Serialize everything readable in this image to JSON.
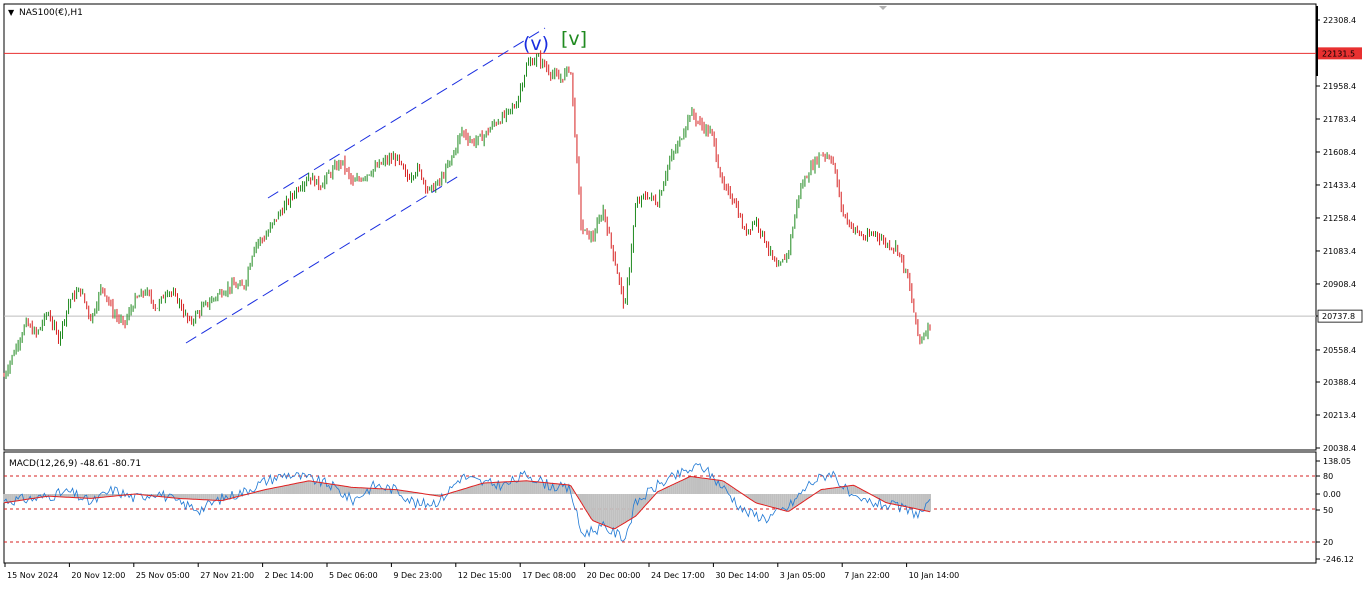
{
  "chart_data": {
    "type": "candlestick",
    "symbol_label": "NAS100(€),H1",
    "price_axis": {
      "range": [
        20038.4,
        22308.4
      ],
      "ticks": [
        "22308.4",
        "21958.4",
        "21783.4",
        "21608.4",
        "21433.4",
        "21258.4",
        "21083.4",
        "20908.4",
        "20738.4",
        "20558.4",
        "20388.4",
        "20213.4",
        "20038.4"
      ],
      "tick_values": [
        22308.4,
        21958.4,
        21783.4,
        21608.4,
        21433.4,
        21258.4,
        21083.4,
        20908.4,
        20738.4,
        20558.4,
        20388.4,
        20213.4,
        20038.4
      ]
    },
    "resistance_line": {
      "value": 22131.5,
      "label": "22131.5",
      "color": "#e83030"
    },
    "current_price": {
      "value": 20737.8,
      "label": "20737.8"
    },
    "wave_labels": [
      {
        "text": "(v)",
        "color": "#1a2ee0"
      },
      {
        "text": "[v]",
        "color": "#1f8a1f"
      }
    ],
    "time_axis": {
      "labels": [
        "15 Nov 2024",
        "20 Nov 12:00",
        "25 Nov 05:00",
        "27 Nov 21:00",
        "2 Dec 14:00",
        "5 Dec 06:00",
        "9 Dec 23:00",
        "12 Dec 15:00",
        "17 Dec 08:00",
        "20 Dec 00:00",
        "24 Dec 17:00",
        "30 Dec 14:00",
        "3 Jan 05:00",
        "7 Jan 22:00",
        "10 Jan 14:00"
      ]
    },
    "price_path": [
      [
        0,
        20420
      ],
      [
        1,
        20560
      ],
      [
        2,
        20700
      ],
      [
        3,
        20640
      ],
      [
        4,
        20760
      ],
      [
        5,
        20620
      ],
      [
        6,
        20820
      ],
      [
        7,
        20880
      ],
      [
        8,
        20720
      ],
      [
        9,
        20900
      ],
      [
        10,
        20760
      ],
      [
        11,
        20690
      ],
      [
        12,
        20820
      ],
      [
        13,
        20870
      ],
      [
        14,
        20780
      ],
      [
        15,
        20880
      ],
      [
        16,
        20820
      ],
      [
        17,
        20700
      ],
      [
        18,
        20770
      ],
      [
        19,
        20820
      ],
      [
        20,
        20870
      ],
      [
        21,
        20900
      ],
      [
        22,
        20890
      ],
      [
        23,
        21120
      ],
      [
        24,
        21160
      ],
      [
        25,
        21260
      ],
      [
        26,
        21340
      ],
      [
        27,
        21420
      ],
      [
        28,
        21480
      ],
      [
        29,
        21430
      ],
      [
        30,
        21500
      ],
      [
        31,
        21560
      ],
      [
        32,
        21440
      ],
      [
        33,
        21480
      ],
      [
        34,
        21520
      ],
      [
        35,
        21560
      ],
      [
        36,
        21580
      ],
      [
        37,
        21470
      ],
      [
        38,
        21520
      ],
      [
        39,
        21400
      ],
      [
        40,
        21450
      ],
      [
        41,
        21560
      ],
      [
        42,
        21720
      ],
      [
        43,
        21660
      ],
      [
        44,
        21690
      ],
      [
        45,
        21760
      ],
      [
        46,
        21800
      ],
      [
        47,
        21860
      ],
      [
        48,
        22070
      ],
      [
        49,
        22110
      ],
      [
        50,
        22040
      ],
      [
        51,
        21990
      ],
      [
        52,
        22060
      ],
      [
        53,
        21200
      ],
      [
        54,
        21150
      ],
      [
        55,
        21300
      ],
      [
        56,
        21050
      ],
      [
        57,
        20780
      ],
      [
        58,
        21330
      ],
      [
        59,
        21380
      ],
      [
        60,
        21340
      ],
      [
        61,
        21550
      ],
      [
        62,
        21660
      ],
      [
        63,
        21820
      ],
      [
        64,
        21750
      ],
      [
        65,
        21700
      ],
      [
        66,
        21420
      ],
      [
        67,
        21360
      ],
      [
        68,
        21180
      ],
      [
        69,
        21250
      ],
      [
        70,
        21120
      ],
      [
        71,
        20980
      ],
      [
        72,
        21080
      ],
      [
        73,
        21400
      ],
      [
        74,
        21520
      ],
      [
        75,
        21600
      ],
      [
        76,
        21580
      ],
      [
        77,
        21280
      ],
      [
        78,
        21200
      ],
      [
        79,
        21150
      ],
      [
        80,
        21180
      ],
      [
        81,
        21120
      ],
      [
        82,
        21100
      ],
      [
        83,
        20930
      ],
      [
        84,
        20600
      ],
      [
        85,
        20700
      ]
    ],
    "channel": {
      "style": "dashed",
      "color": "#1a2ee0"
    },
    "indicator": {
      "name": "MACD(12,26,9)",
      "values_label": "MACD(12,26,9) -48.61 -80.71",
      "macd": -48.61,
      "signal": -80.71,
      "axis_ticks": [
        "138.05",
        "80",
        "0.00",
        "50",
        "20",
        "-246.12"
      ],
      "levels": [
        80,
        -50,
        -246.12
      ],
      "histogram_color": "#c0c0c0",
      "macd_color": "#1e78d4",
      "signal_color": "#e02020",
      "macd_path": [
        [
          0,
          -30
        ],
        [
          3,
          -20
        ],
        [
          6,
          10
        ],
        [
          8,
          -40
        ],
        [
          10,
          20
        ],
        [
          12,
          -20
        ],
        [
          14,
          10
        ],
        [
          16,
          -40
        ],
        [
          18,
          -70
        ],
        [
          20,
          -20
        ],
        [
          22,
          10
        ],
        [
          24,
          60
        ],
        [
          26,
          90
        ],
        [
          28,
          70
        ],
        [
          30,
          40
        ],
        [
          32,
          -30
        ],
        [
          34,
          40
        ],
        [
          36,
          20
        ],
        [
          38,
          -50
        ],
        [
          40,
          -30
        ],
        [
          42,
          80
        ],
        [
          44,
          50
        ],
        [
          46,
          40
        ],
        [
          48,
          90
        ],
        [
          50,
          40
        ],
        [
          52,
          20
        ],
        [
          53,
          -180
        ],
        [
          55,
          -150
        ],
        [
          57,
          -200
        ],
        [
          58,
          -40
        ],
        [
          60,
          40
        ],
        [
          62,
          90
        ],
        [
          64,
          130
        ],
        [
          66,
          30
        ],
        [
          68,
          -80
        ],
        [
          70,
          -110
        ],
        [
          72,
          -60
        ],
        [
          74,
          50
        ],
        [
          76,
          100
        ],
        [
          78,
          -30
        ],
        [
          80,
          -40
        ],
        [
          82,
          -60
        ],
        [
          84,
          -90
        ],
        [
          85,
          -48.61
        ]
      ],
      "signal_path": [
        [
          0,
          -40
        ],
        [
          4,
          -10
        ],
        [
          8,
          -20
        ],
        [
          12,
          0
        ],
        [
          16,
          -20
        ],
        [
          20,
          -30
        ],
        [
          24,
          20
        ],
        [
          28,
          60
        ],
        [
          32,
          30
        ],
        [
          36,
          20
        ],
        [
          40,
          -10
        ],
        [
          44,
          50
        ],
        [
          48,
          60
        ],
        [
          52,
          40
        ],
        [
          54,
          -120
        ],
        [
          56,
          -160
        ],
        [
          58,
          -100
        ],
        [
          60,
          10
        ],
        [
          63,
          80
        ],
        [
          66,
          60
        ],
        [
          69,
          -40
        ],
        [
          72,
          -80
        ],
        [
          75,
          20
        ],
        [
          78,
          40
        ],
        [
          81,
          -40
        ],
        [
          84,
          -70
        ],
        [
          85,
          -80.71
        ]
      ]
    }
  }
}
